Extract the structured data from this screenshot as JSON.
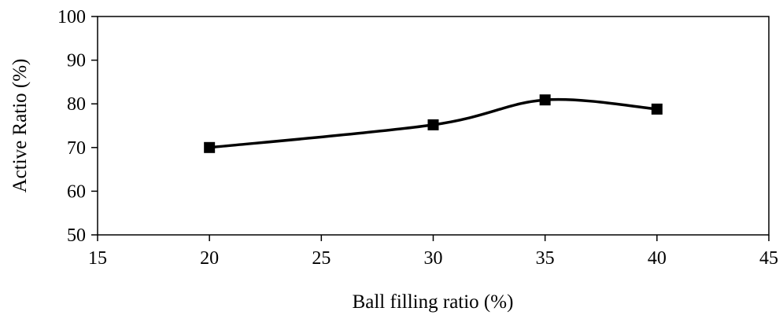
{
  "chart_data": {
    "type": "line",
    "title": "",
    "xlabel": "Ball filling ratio (%)",
    "ylabel": "Active Ratio (%)",
    "xlim": [
      15,
      45
    ],
    "ylim": [
      50,
      100
    ],
    "xticks": [
      15,
      20,
      25,
      30,
      35,
      40,
      45
    ],
    "yticks": [
      50,
      60,
      70,
      80,
      90,
      100
    ],
    "grid": false,
    "legend": "none",
    "line_style": "smooth",
    "marker": "square",
    "colors": {
      "line": "#000000",
      "marker": "#000000",
      "axis": "#000000"
    },
    "series": [
      {
        "x": [
          20,
          30,
          35,
          40
        ],
        "y": [
          70.0,
          75.2,
          80.9,
          78.8
        ]
      }
    ]
  }
}
